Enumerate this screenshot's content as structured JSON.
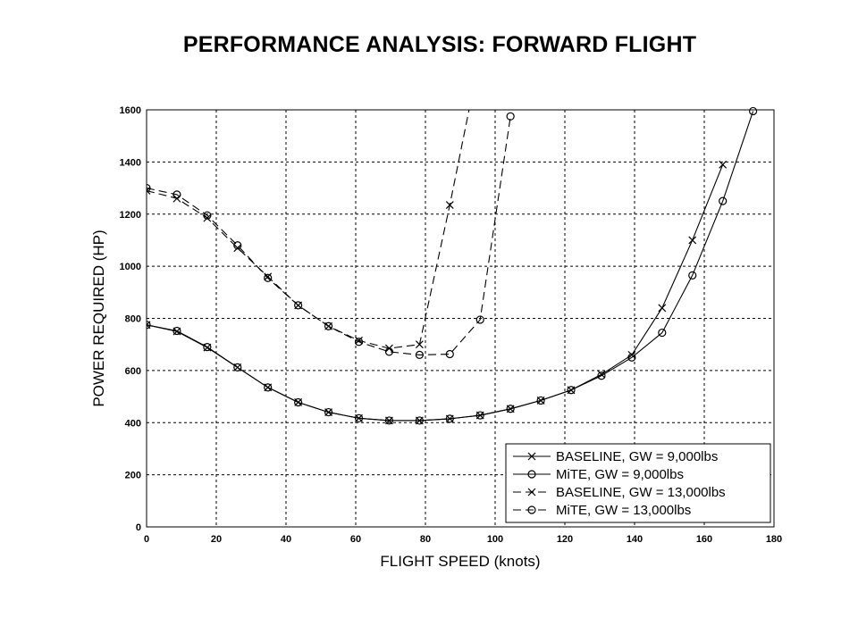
{
  "page": {
    "title": "PERFORMANCE ANALYSIS: FORWARD FLIGHT"
  },
  "chart_data": {
    "type": "line",
    "xlabel": "FLIGHT SPEED (knots)",
    "ylabel": "POWER REQUIRED (HP)",
    "xlim": [
      0,
      180
    ],
    "ylim": [
      0,
      1600
    ],
    "xticks": [
      0,
      20,
      40,
      60,
      80,
      100,
      120,
      140,
      160,
      180
    ],
    "yticks": [
      0,
      200,
      400,
      600,
      800,
      1000,
      1200,
      1400,
      1600
    ],
    "grid": true,
    "legend_position": "bottom-right",
    "series": [
      {
        "name": "BASELINE, GW = 9,000lbs",
        "marker": "x",
        "line_style": "solid",
        "x": [
          0,
          8.7,
          17.4,
          26.1,
          34.8,
          43.5,
          52.2,
          60.9,
          69.6,
          78.3,
          87,
          95.7,
          104.4,
          113.1,
          121.8,
          130.5,
          139.2,
          147.9,
          156.6,
          165.3
        ],
        "y": [
          775,
          750,
          688,
          612,
          535,
          478,
          440,
          417,
          408,
          408,
          415,
          428,
          453,
          485,
          525,
          585,
          660,
          840,
          1100,
          1390
        ]
      },
      {
        "name": "MiTE, GW = 9,000lbs",
        "marker": "o",
        "line_style": "solid",
        "x": [
          0,
          8.7,
          17.4,
          26.1,
          34.8,
          43.5,
          52.2,
          60.9,
          69.6,
          78.3,
          87,
          95.7,
          104.4,
          113.1,
          121.8,
          130.5,
          139.2,
          147.9,
          156.6,
          165.3,
          174
        ],
        "y": [
          775,
          752,
          690,
          612,
          535,
          478,
          440,
          417,
          408,
          408,
          415,
          428,
          453,
          485,
          525,
          580,
          650,
          745,
          965,
          1250,
          1595
        ]
      },
      {
        "name": "BASELINE, GW = 13,000lbs",
        "marker": "x",
        "line_style": "dashed",
        "x": [
          0,
          8.7,
          17.4,
          26.1,
          34.8,
          43.5,
          52.2,
          60.9,
          69.6,
          78.3,
          87,
          92.5
        ],
        "y": [
          1290,
          1260,
          1185,
          1070,
          960,
          850,
          770,
          715,
          685,
          700,
          1235,
          1600
        ]
      },
      {
        "name": "MiTE, GW = 13,000lbs",
        "marker": "o",
        "line_style": "dashed",
        "x": [
          0,
          8.7,
          17.4,
          26.1,
          34.8,
          43.5,
          52.2,
          60.9,
          69.6,
          78.3,
          87,
          95.7,
          104.4
        ],
        "y": [
          1300,
          1275,
          1195,
          1080,
          955,
          850,
          770,
          710,
          672,
          660,
          663,
          795,
          1575
        ]
      }
    ]
  }
}
